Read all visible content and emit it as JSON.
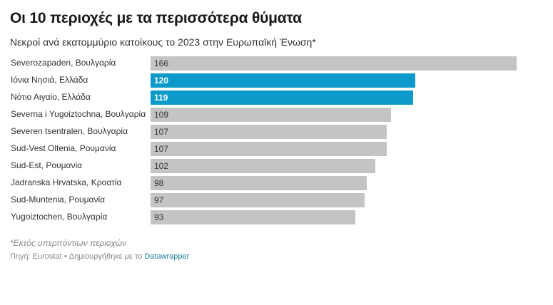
{
  "header": {
    "title": "Οι 10 περιοχές με τα περισσότερα θύματα",
    "subtitle": "Νεκροί ανά εκατομμύριο κατοίκους το 2023 στην Ευρωπαϊκή Ένωση*"
  },
  "footer": {
    "note": "*Εκτός υπερπόντιων περιοχών",
    "source_prefix": "Πηγή: Eurostat • Δημιουργήθηκε με το",
    "source_link": "Datawrapper"
  },
  "colors": {
    "bar": "#c4c4c4",
    "highlight": "#0b9ac9"
  },
  "chart_data": {
    "type": "bar",
    "orientation": "horizontal",
    "title": "Οι 10 περιοχές με τα περισσότερα θύματα",
    "subtitle": "Νεκροί ανά εκατομμύριο κατοίκους το 2023 στην Ευρωπαϊκή Ένωση*",
    "categories": [
      "Severozapaden, Βουλγαρία",
      "Ιόνια Νησιά, Ελλάδα",
      "Νότιο Αιγαίο, Ελλάδα",
      "Severna i Yugoiztochna, Βουλγαρία",
      "Severen tsentralen, Βουλγαρία",
      "Sud-Vest Oltenia, Ρουμανία",
      "Sud-Est, Ρουμανία",
      "Jadranska Hrvatska, Κροατία",
      "Sud-Muntenia, Ρουμανία",
      "Yugoiztochen, Βουλγαρία"
    ],
    "values": [
      166,
      120,
      119,
      109,
      107,
      107,
      102,
      98,
      97,
      93
    ],
    "highlighted": [
      false,
      true,
      true,
      false,
      false,
      false,
      false,
      false,
      false,
      false
    ],
    "xlim": [
      0,
      166
    ],
    "xlabel": "",
    "ylabel": ""
  }
}
